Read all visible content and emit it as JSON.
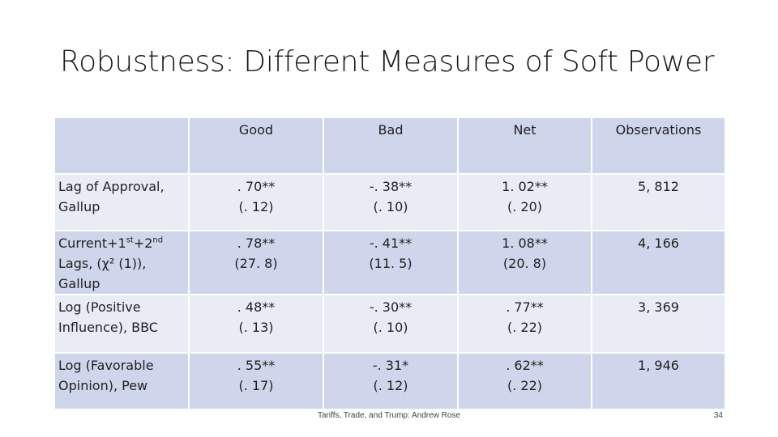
{
  "slide": {
    "title": "Robustness: Different Measures of Soft Power",
    "footer": "Tariffs, Trade, and Trump: Andrew Rose",
    "page_number": "34"
  },
  "table": {
    "headers": [
      "",
      "Good",
      "Bad",
      "Net",
      "Observations"
    ],
    "rows": [
      {
        "label_lines": [
          "Lag of Approval,",
          "Gallup"
        ],
        "good": [
          ". 70**",
          "(. 12)"
        ],
        "bad": [
          "-. 38**",
          "(. 10)"
        ],
        "net": [
          "1. 02**",
          "(. 20)"
        ],
        "obs": "5, 812"
      },
      {
        "label": {
          "part1": "Current+1",
          "sup1": "st",
          "part2": "+2",
          "sup2": "nd",
          "line2": "Lags, (χ² (1)),",
          "line3": "Gallup"
        },
        "good": [
          ". 78**",
          "(27. 8)"
        ],
        "bad": [
          "-. 41**",
          "(11. 5)"
        ],
        "net": [
          "1. 08**",
          "(20. 8)"
        ],
        "obs": "4, 166"
      },
      {
        "label_lines": [
          "Log (Positive",
          "Influence), BBC"
        ],
        "good": [
          ". 48**",
          "(. 13)"
        ],
        "bad": [
          "-. 30**",
          "(. 10)"
        ],
        "net": [
          ". 77**",
          "(. 22)"
        ],
        "obs": "3, 369"
      },
      {
        "label_lines": [
          "Log (Favorable",
          "Opinion), Pew"
        ],
        "good": [
          ". 55**",
          "(. 17)"
        ],
        "bad": [
          "-. 31*",
          "(. 12)"
        ],
        "net": [
          ". 62**",
          "(. 22)"
        ],
        "obs": "1, 946"
      }
    ]
  }
}
